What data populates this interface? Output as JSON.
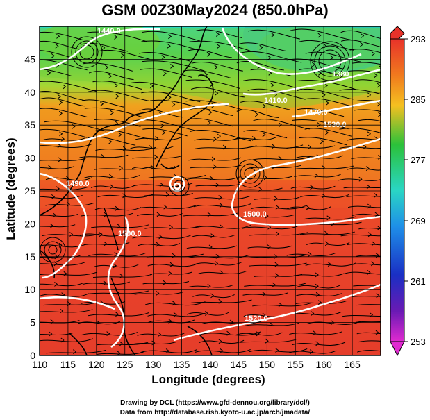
{
  "title": "GSM 00Z30May2024 (850.0hPa)",
  "x_axis": {
    "label": "Longitude (degrees)",
    "ticks": [
      "110",
      "115",
      "120",
      "125",
      "130",
      "135",
      "140",
      "145",
      "150",
      "155",
      "160",
      "165"
    ]
  },
  "y_axis": {
    "label": "Latitude  (degrees)",
    "ticks": [
      "0",
      "5",
      "10",
      "15",
      "20",
      "25",
      "30",
      "35",
      "40",
      "45"
    ]
  },
  "colorbar": {
    "ticks": [
      "293",
      "285",
      "277",
      "269",
      "261",
      "253"
    ]
  },
  "contour_labels": [
    "1440.0",
    "1380",
    "1410.0",
    "1470.0",
    "1530.0",
    "1490.0",
    "1500.0",
    "1500.0",
    "1520.0"
  ],
  "credits": [
    "Drawing by DCL (https://www.gfd-dennou.org/library/dcl/)",
    "Data from http://database.rish.kyoto-u.ac.jp/arch/jmadata/"
  ],
  "colors": {
    "warm": "#e8432a",
    "cool": "#27c8b4",
    "contour": "#ffffff"
  }
}
